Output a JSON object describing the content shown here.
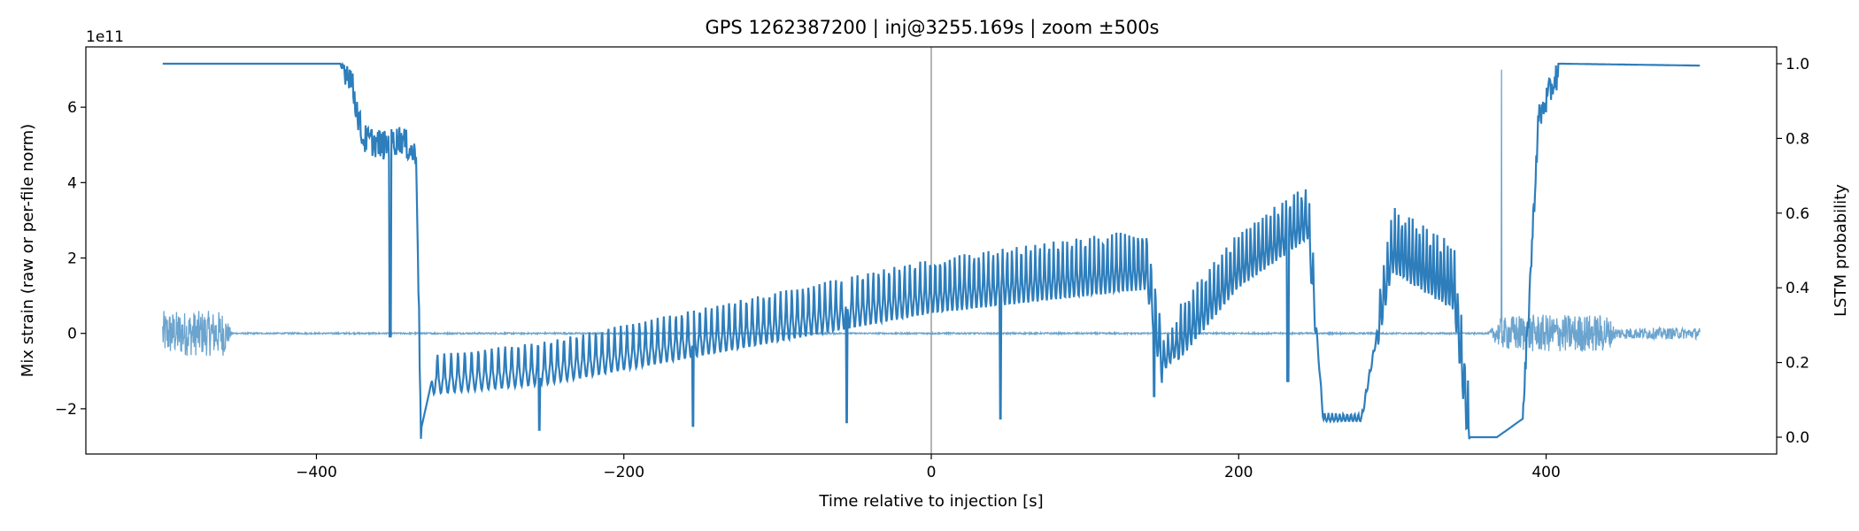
{
  "chart_data": {
    "type": "line",
    "title": "GPS 1262387200 | inj@3255.169s | zoom ±500s",
    "xlabel": "Time relative to injection [s]",
    "ylabel": "Mix strain (raw or per-file norm)",
    "y2label": "LSTM probability",
    "offset_text": "1e11",
    "xlim": [
      -550,
      550
    ],
    "ylim": [
      -3.2,
      7.6
    ],
    "y2lim": [
      -0.045,
      1.045
    ],
    "xticks": [
      -400,
      -200,
      0,
      200,
      400
    ],
    "xtick_labels": [
      "−400",
      "−200",
      "0",
      "200",
      "400"
    ],
    "yticks": [
      -2,
      0,
      2,
      4,
      6
    ],
    "ytick_labels": [
      "−2",
      "0",
      "2",
      "4",
      "6"
    ],
    "y2ticks": [
      0.0,
      0.2,
      0.4,
      0.6,
      0.8,
      1.0
    ],
    "y2tick_labels": [
      "0.0",
      "0.2",
      "0.4",
      "0.6",
      "0.8",
      "1.0"
    ],
    "injection_marker_x": 0,
    "series": [
      {
        "name": "Mix strain",
        "axis": "left",
        "color": "#5b9ac9",
        "description_points": [
          {
            "x": -500,
            "y_env": 0.6
          },
          {
            "x": -460,
            "y_env": 0.6
          },
          {
            "x": -455,
            "y_env": 0.02
          },
          {
            "x": 362,
            "y_env": 0.02
          },
          {
            "x": 370,
            "y_env": 0.4
          },
          {
            "x": 371,
            "y_peak": 7.0
          },
          {
            "x": 380,
            "y_env": 0.5
          },
          {
            "x": 440,
            "y_env": 0.5
          },
          {
            "x": 445,
            "y_env": 0.15
          },
          {
            "x": 500,
            "y_env": 0.15
          }
        ]
      },
      {
        "name": "LSTM probability",
        "axis": "right",
        "color": "#2e7ebc",
        "key_points": [
          {
            "x": -500,
            "y": 1.0
          },
          {
            "x": -385,
            "y": 1.0
          },
          {
            "x": -378,
            "y": 0.97
          },
          {
            "x": -370,
            "y": 0.8
          },
          {
            "x": -355,
            "y": 0.78
          },
          {
            "x": -345,
            "y": 0.8
          },
          {
            "x": -335,
            "y": 0.75
          },
          {
            "x": -332,
            "y": 0.02
          },
          {
            "x": -325,
            "y": 0.15
          },
          {
            "x": -250,
            "y": 0.18
          },
          {
            "x": 0,
            "y": 0.38
          },
          {
            "x": 140,
            "y": 0.45
          },
          {
            "x": 150,
            "y": 0.2
          },
          {
            "x": 200,
            "y": 0.45
          },
          {
            "x": 245,
            "y": 0.58
          },
          {
            "x": 255,
            "y": 0.05
          },
          {
            "x": 280,
            "y": 0.05
          },
          {
            "x": 300,
            "y": 0.5
          },
          {
            "x": 340,
            "y": 0.4
          },
          {
            "x": 350,
            "y": 0.0
          },
          {
            "x": 368,
            "y": 0.0
          },
          {
            "x": 385,
            "y": 0.05
          },
          {
            "x": 395,
            "y": 0.85
          },
          {
            "x": 410,
            "y": 1.0
          },
          {
            "x": 500,
            "y": 0.995
          }
        ]
      }
    ]
  }
}
